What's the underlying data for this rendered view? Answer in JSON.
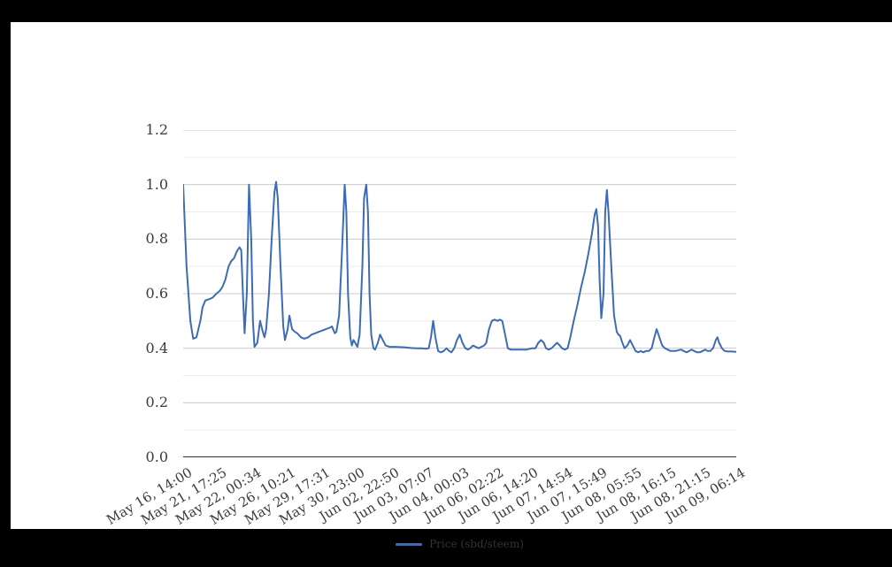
{
  "window": {
    "frame_color": "#000000",
    "panel_background": "#ffffff"
  },
  "chart_data": {
    "type": "line",
    "title": "",
    "xlabel": "",
    "ylabel": "",
    "grid": {
      "major_color": "#cccccc",
      "minor_color": "#ececec",
      "axis_color": "#333333",
      "vertical_gridlines": false
    },
    "y_axis": {
      "min": 0.0,
      "max": 1.2,
      "tick_labels": [
        "0.0",
        "0.2",
        "0.4",
        "0.6",
        "0.8",
        "1.0",
        "1.2"
      ],
      "major_values": [
        0.0,
        0.2,
        0.4,
        0.6,
        0.8,
        1.0,
        1.2
      ],
      "minor_values": [
        0.1,
        0.3,
        0.5,
        0.7,
        0.9,
        1.1
      ]
    },
    "x_tick_labels": [
      "May 16, 14:00",
      "May 21, 17:25",
      "May 22, 00:34",
      "May 26, 10:21",
      "May 29, 17:31",
      "May 30, 23:00",
      "Jun 02, 22:50",
      "Jun 03, 07:07",
      "Jun 04, 00:03",
      "Jun 06, 02:22",
      "Jun 06, 14:20",
      "Jun 07, 14:54",
      "Jun 07, 15:49",
      "Jun 08, 05:55",
      "Jun 08, 16:15",
      "Jun 08, 21:15",
      "Jun 09, 06:14"
    ],
    "legend": {
      "position": "bottom-center",
      "label": "Price (sbd/steem)"
    },
    "series": [
      {
        "name": "Price (sbd/steem)",
        "color": "#3d6cb5",
        "points": [
          [
            0.0,
            1.0
          ],
          [
            0.006,
            0.7
          ],
          [
            0.013,
            0.5
          ],
          [
            0.018,
            0.435
          ],
          [
            0.024,
            0.44
          ],
          [
            0.031,
            0.5
          ],
          [
            0.035,
            0.55
          ],
          [
            0.04,
            0.575
          ],
          [
            0.047,
            0.58
          ],
          [
            0.053,
            0.585
          ],
          [
            0.06,
            0.6
          ],
          [
            0.066,
            0.61
          ],
          [
            0.071,
            0.625
          ],
          [
            0.076,
            0.65
          ],
          [
            0.082,
            0.7
          ],
          [
            0.087,
            0.72
          ],
          [
            0.092,
            0.73
          ],
          [
            0.097,
            0.755
          ],
          [
            0.102,
            0.77
          ],
          [
            0.105,
            0.76
          ],
          [
            0.108,
            0.6
          ],
          [
            0.111,
            0.455
          ],
          [
            0.115,
            0.6
          ],
          [
            0.119,
            1.0
          ],
          [
            0.123,
            0.8
          ],
          [
            0.126,
            0.5
          ],
          [
            0.129,
            0.405
          ],
          [
            0.134,
            0.42
          ],
          [
            0.139,
            0.5
          ],
          [
            0.144,
            0.46
          ],
          [
            0.147,
            0.44
          ],
          [
            0.15,
            0.47
          ],
          [
            0.155,
            0.6
          ],
          [
            0.16,
            0.8
          ],
          [
            0.165,
            0.97
          ],
          [
            0.168,
            1.01
          ],
          [
            0.171,
            0.95
          ],
          [
            0.176,
            0.7
          ],
          [
            0.181,
            0.48
          ],
          [
            0.184,
            0.43
          ],
          [
            0.189,
            0.47
          ],
          [
            0.192,
            0.52
          ],
          [
            0.197,
            0.47
          ],
          [
            0.202,
            0.46
          ],
          [
            0.206,
            0.455
          ],
          [
            0.213,
            0.44
          ],
          [
            0.219,
            0.435
          ],
          [
            0.226,
            0.44
          ],
          [
            0.232,
            0.45
          ],
          [
            0.239,
            0.455
          ],
          [
            0.245,
            0.46
          ],
          [
            0.252,
            0.465
          ],
          [
            0.258,
            0.47
          ],
          [
            0.265,
            0.475
          ],
          [
            0.269,
            0.48
          ],
          [
            0.274,
            0.455
          ],
          [
            0.277,
            0.46
          ],
          [
            0.282,
            0.52
          ],
          [
            0.287,
            0.75
          ],
          [
            0.292,
            1.0
          ],
          [
            0.295,
            0.9
          ],
          [
            0.298,
            0.6
          ],
          [
            0.302,
            0.44
          ],
          [
            0.305,
            0.41
          ],
          [
            0.308,
            0.43
          ],
          [
            0.311,
            0.42
          ],
          [
            0.315,
            0.405
          ],
          [
            0.319,
            0.45
          ],
          [
            0.324,
            0.7
          ],
          [
            0.327,
            0.95
          ],
          [
            0.331,
            1.0
          ],
          [
            0.334,
            0.9
          ],
          [
            0.337,
            0.6
          ],
          [
            0.34,
            0.45
          ],
          [
            0.344,
            0.4
          ],
          [
            0.347,
            0.395
          ],
          [
            0.352,
            0.42
          ],
          [
            0.356,
            0.45
          ],
          [
            0.361,
            0.43
          ],
          [
            0.366,
            0.41
          ],
          [
            0.373,
            0.405
          ],
          [
            0.382,
            0.405
          ],
          [
            0.392,
            0.404
          ],
          [
            0.402,
            0.403
          ],
          [
            0.411,
            0.401
          ],
          [
            0.421,
            0.4
          ],
          [
            0.431,
            0.4
          ],
          [
            0.439,
            0.398
          ],
          [
            0.444,
            0.4
          ],
          [
            0.448,
            0.44
          ],
          [
            0.452,
            0.5
          ],
          [
            0.456,
            0.44
          ],
          [
            0.461,
            0.39
          ],
          [
            0.466,
            0.385
          ],
          [
            0.471,
            0.39
          ],
          [
            0.476,
            0.4
          ],
          [
            0.481,
            0.39
          ],
          [
            0.485,
            0.385
          ],
          [
            0.49,
            0.4
          ],
          [
            0.495,
            0.43
          ],
          [
            0.5,
            0.45
          ],
          [
            0.505,
            0.42
          ],
          [
            0.51,
            0.4
          ],
          [
            0.515,
            0.395
          ],
          [
            0.519,
            0.4
          ],
          [
            0.524,
            0.41
          ],
          [
            0.529,
            0.405
          ],
          [
            0.534,
            0.4
          ],
          [
            0.539,
            0.405
          ],
          [
            0.544,
            0.41
          ],
          [
            0.548,
            0.42
          ],
          [
            0.553,
            0.47
          ],
          [
            0.558,
            0.5
          ],
          [
            0.563,
            0.505
          ],
          [
            0.568,
            0.5
          ],
          [
            0.573,
            0.505
          ],
          [
            0.577,
            0.5
          ],
          [
            0.582,
            0.45
          ],
          [
            0.587,
            0.4
          ],
          [
            0.592,
            0.395
          ],
          [
            0.602,
            0.395
          ],
          [
            0.611,
            0.395
          ],
          [
            0.621,
            0.395
          ],
          [
            0.631,
            0.4
          ],
          [
            0.637,
            0.4
          ],
          [
            0.642,
            0.42
          ],
          [
            0.647,
            0.43
          ],
          [
            0.652,
            0.42
          ],
          [
            0.656,
            0.4
          ],
          [
            0.661,
            0.395
          ],
          [
            0.666,
            0.4
          ],
          [
            0.671,
            0.41
          ],
          [
            0.676,
            0.42
          ],
          [
            0.681,
            0.41
          ],
          [
            0.685,
            0.4
          ],
          [
            0.69,
            0.395
          ],
          [
            0.695,
            0.4
          ],
          [
            0.7,
            0.44
          ],
          [
            0.706,
            0.5
          ],
          [
            0.713,
            0.56
          ],
          [
            0.719,
            0.62
          ],
          [
            0.726,
            0.68
          ],
          [
            0.732,
            0.74
          ],
          [
            0.739,
            0.82
          ],
          [
            0.744,
            0.89
          ],
          [
            0.747,
            0.91
          ],
          [
            0.75,
            0.85
          ],
          [
            0.753,
            0.65
          ],
          [
            0.756,
            0.51
          ],
          [
            0.76,
            0.6
          ],
          [
            0.763,
            0.9
          ],
          [
            0.766,
            0.98
          ],
          [
            0.769,
            0.9
          ],
          [
            0.774,
            0.7
          ],
          [
            0.779,
            0.52
          ],
          [
            0.784,
            0.46
          ],
          [
            0.787,
            0.45
          ],
          [
            0.79,
            0.445
          ],
          [
            0.794,
            0.42
          ],
          [
            0.798,
            0.4
          ],
          [
            0.803,
            0.41
          ],
          [
            0.808,
            0.43
          ],
          [
            0.813,
            0.41
          ],
          [
            0.818,
            0.39
          ],
          [
            0.823,
            0.385
          ],
          [
            0.827,
            0.39
          ],
          [
            0.832,
            0.385
          ],
          [
            0.837,
            0.39
          ],
          [
            0.842,
            0.39
          ],
          [
            0.847,
            0.4
          ],
          [
            0.852,
            0.44
          ],
          [
            0.856,
            0.47
          ],
          [
            0.861,
            0.44
          ],
          [
            0.866,
            0.41
          ],
          [
            0.871,
            0.4
          ],
          [
            0.876,
            0.395
          ],
          [
            0.881,
            0.39
          ],
          [
            0.89,
            0.39
          ],
          [
            0.9,
            0.395
          ],
          [
            0.905,
            0.39
          ],
          [
            0.91,
            0.385
          ],
          [
            0.915,
            0.39
          ],
          [
            0.919,
            0.395
          ],
          [
            0.924,
            0.39
          ],
          [
            0.929,
            0.385
          ],
          [
            0.934,
            0.385
          ],
          [
            0.939,
            0.39
          ],
          [
            0.944,
            0.395
          ],
          [
            0.948,
            0.39
          ],
          [
            0.953,
            0.39
          ],
          [
            0.958,
            0.4
          ],
          [
            0.963,
            0.43
          ],
          [
            0.966,
            0.44
          ],
          [
            0.969,
            0.42
          ],
          [
            0.974,
            0.4
          ],
          [
            0.979,
            0.39
          ],
          [
            0.985,
            0.388
          ],
          [
            0.992,
            0.388
          ],
          [
            1.0,
            0.387
          ]
        ]
      }
    ]
  }
}
